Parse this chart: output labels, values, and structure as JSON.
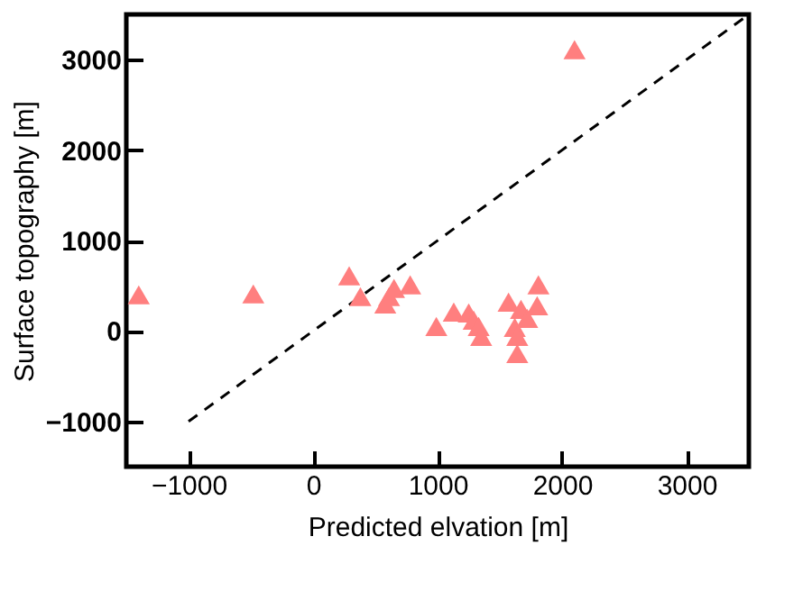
{
  "chart_data": {
    "type": "scatter",
    "xlabel": "Predicted elvation [m]",
    "ylabel": "Surface topography [m]",
    "xlim": [
      -1500,
      3500
    ],
    "ylim": [
      -1500,
      3500
    ],
    "xticks": [
      -1000,
      0,
      1000,
      2000,
      3000
    ],
    "yticks": [
      -1000,
      0,
      1000,
      2000,
      3000
    ],
    "grid": false,
    "marker": "triangle",
    "series": [
      {
        "color": "#ff7f7f",
        "x": [
          -1400,
          -480,
          290,
          380,
          580,
          610,
          650,
          780,
          990,
          1130,
          1250,
          1290,
          1330,
          1350,
          1570,
          1620,
          1640,
          1640,
          1670,
          1720,
          1800,
          1810,
          2100
        ],
        "values": [
          400,
          410,
          610,
          380,
          300,
          380,
          470,
          510,
          50,
          210,
          200,
          120,
          50,
          -60,
          320,
          40,
          -60,
          -250,
          240,
          140,
          280,
          510,
          3110
        ]
      },
      {
        "type": "line",
        "color": "#000000",
        "line_style": "dashed",
        "marker": "none",
        "x": [
          -1000,
          3500
        ],
        "values": [
          -1000,
          3500
        ]
      }
    ]
  }
}
